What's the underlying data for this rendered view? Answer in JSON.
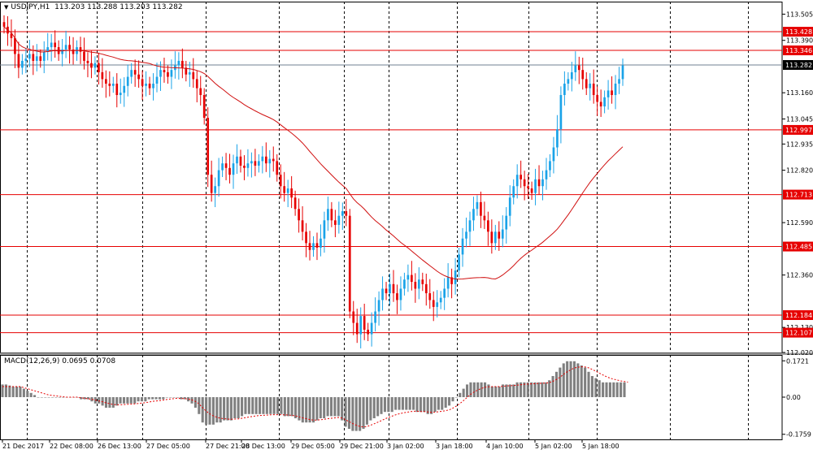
{
  "header": {
    "symbol": "USDJPY,H1",
    "ohlc": "113.203 113.288 113.203 113.282"
  },
  "macd_header": {
    "label": "MACD(12,26,9)",
    "values": "0.0695 0.0708"
  },
  "colors": {
    "bull": "#1aa3e8",
    "bear": "#e60000",
    "level_line": "#e60000",
    "ma_line": "#d01010",
    "grid": "#000000",
    "hist": "#808080",
    "signal": "#e60000",
    "price_tag_bg": "#000000",
    "level_tag_bg": "#e60000"
  },
  "chart_data": [
    {
      "type": "candlestick",
      "title": "USDJPY,H1",
      "ylim": [
        112.02,
        113.56
      ],
      "y_ticks": [
        "113.505",
        "113.390",
        "113.160",
        "113.045",
        "112.935",
        "112.820",
        "112.590",
        "112.360",
        "112.130",
        "112.020"
      ],
      "x_ticks": [
        "21 Dec 2017",
        "22 Dec 08:00",
        "26 Dec 13:00",
        "27 Dec 05:00",
        "27 Dec 21:00",
        "28 Dec 13:00",
        "29 Dec 05:00",
        "29 Dec 21:00",
        "3 Jan 02:00",
        "3 Jan 18:00",
        "4 Jan 10:00",
        "5 Jan 02:00",
        "5 Jan 18:00"
      ],
      "levels": [
        "113.428",
        "113.346",
        "112.997",
        "112.713",
        "112.485",
        "112.184",
        "112.107"
      ],
      "current_price": "113.282",
      "closes": [
        113.45,
        113.42,
        113.4,
        113.33,
        113.27,
        113.3,
        113.31,
        113.33,
        113.3,
        113.32,
        113.3,
        113.34,
        113.36,
        113.38,
        113.36,
        113.33,
        113.35,
        113.37,
        113.35,
        113.33,
        113.36,
        113.34,
        113.3,
        113.29,
        113.27,
        113.29,
        113.25,
        113.22,
        113.2,
        113.19,
        113.2,
        113.15,
        113.16,
        113.19,
        113.23,
        113.26,
        113.24,
        113.22,
        113.19,
        113.2,
        113.18,
        113.2,
        113.23,
        113.26,
        113.25,
        113.23,
        113.26,
        113.28,
        113.3,
        113.27,
        113.24,
        113.25,
        113.22,
        113.18,
        113.15,
        113.05,
        112.8,
        112.72,
        112.75,
        112.82,
        112.85,
        112.83,
        112.8,
        112.85,
        112.88,
        112.84,
        112.83,
        112.85,
        112.86,
        112.84,
        112.86,
        112.88,
        112.85,
        112.87,
        112.86,
        112.8,
        112.75,
        112.72,
        112.74,
        112.7,
        112.65,
        112.6,
        112.55,
        112.5,
        112.47,
        112.5,
        112.48,
        112.52,
        112.6,
        112.65,
        112.6,
        112.58,
        112.62,
        112.64,
        112.62,
        112.2,
        112.15,
        112.1,
        112.18,
        112.12,
        112.1,
        112.15,
        112.2,
        112.25,
        112.3,
        112.28,
        112.32,
        112.28,
        112.25,
        112.3,
        112.34,
        112.36,
        112.33,
        112.3,
        112.34,
        112.32,
        112.28,
        112.25,
        112.22,
        112.24,
        112.26,
        112.3,
        112.35,
        112.32,
        112.38,
        112.45,
        112.52,
        112.55,
        112.6,
        112.65,
        112.68,
        112.62,
        112.6,
        112.55,
        112.5,
        112.55,
        112.52,
        112.56,
        112.62,
        112.7,
        112.75,
        112.8,
        112.78,
        112.75,
        112.74,
        112.72,
        112.78,
        112.75,
        112.78,
        112.82,
        112.86,
        112.92,
        113.0,
        113.15,
        113.2,
        113.22,
        113.25,
        113.28,
        113.26,
        113.22,
        113.18,
        113.2,
        113.15,
        113.12,
        113.1,
        113.14,
        113.17,
        113.15,
        113.2,
        113.22,
        113.28
      ]
    },
    {
      "type": "macd",
      "title": "MACD(12,26,9)",
      "ylim": [
        -0.2,
        0.2
      ],
      "y_ticks": [
        "0.1721",
        "0.00",
        "-0.1759"
      ],
      "histogram": [
        0.06,
        0.06,
        0.055,
        0.05,
        0.05,
        0.05,
        0.04,
        0.03,
        0.02,
        0.01,
        0.0,
        0.0,
        0.0,
        0.0,
        0.0,
        0.0,
        0.0,
        0.0,
        0.0,
        0.0,
        0.0,
        0.0,
        -0.01,
        -0.01,
        -0.01,
        -0.02,
        -0.03,
        -0.03,
        -0.04,
        -0.05,
        -0.05,
        -0.05,
        -0.04,
        -0.03,
        -0.03,
        -0.03,
        -0.03,
        -0.03,
        -0.02,
        -0.02,
        -0.02,
        -0.01,
        -0.01,
        -0.01,
        -0.01,
        -0.01,
        0.0,
        0.0,
        0.0,
        0.0,
        -0.01,
        -0.01,
        -0.02,
        -0.03,
        -0.05,
        -0.08,
        -0.12,
        -0.13,
        -0.13,
        -0.13,
        -0.12,
        -0.12,
        -0.11,
        -0.11,
        -0.11,
        -0.1,
        -0.1,
        -0.09,
        -0.08,
        -0.08,
        -0.08,
        -0.08,
        -0.08,
        -0.08,
        -0.08,
        -0.08,
        -0.08,
        -0.08,
        -0.08,
        -0.09,
        -0.09,
        -0.09,
        -0.1,
        -0.11,
        -0.12,
        -0.12,
        -0.12,
        -0.12,
        -0.11,
        -0.1,
        -0.1,
        -0.09,
        -0.09,
        -0.09,
        -0.09,
        -0.11,
        -0.14,
        -0.15,
        -0.16,
        -0.16,
        -0.16,
        -0.15,
        -0.13,
        -0.11,
        -0.1,
        -0.09,
        -0.08,
        -0.07,
        -0.07,
        -0.07,
        -0.06,
        -0.06,
        -0.06,
        -0.06,
        -0.06,
        -0.06,
        -0.07,
        -0.07,
        -0.07,
        -0.08,
        -0.08,
        -0.07,
        -0.06,
        -0.06,
        -0.05,
        -0.04,
        -0.02,
        0.0,
        0.02,
        0.04,
        0.06,
        0.07,
        0.07,
        0.07,
        0.07,
        0.07,
        0.06,
        0.05,
        0.05,
        0.05,
        0.06,
        0.06,
        0.06,
        0.06,
        0.07,
        0.07,
        0.07,
        0.07,
        0.07,
        0.07,
        0.07,
        0.07,
        0.07,
        0.08,
        0.1,
        0.12,
        0.14,
        0.16,
        0.17,
        0.17,
        0.17,
        0.16,
        0.15,
        0.14,
        0.12,
        0.1,
        0.09,
        0.08,
        0.07,
        0.07,
        0.07,
        0.07,
        0.07,
        0.07,
        0.07
      ],
      "signal": [
        0.05,
        0.05,
        0.05,
        0.05,
        0.05,
        0.05,
        0.045,
        0.04,
        0.035,
        0.03,
        0.025,
        0.02,
        0.015,
        0.01,
        0.008,
        0.006,
        0.004,
        0.002,
        0.0,
        0.0,
        0.0,
        0.0,
        -0.003,
        -0.005,
        -0.008,
        -0.01,
        -0.014,
        -0.018,
        -0.022,
        -0.027,
        -0.031,
        -0.035,
        -0.036,
        -0.036,
        -0.035,
        -0.034,
        -0.033,
        -0.032,
        -0.03,
        -0.028,
        -0.026,
        -0.023,
        -0.02,
        -0.018,
        -0.016,
        -0.014,
        -0.011,
        -0.009,
        -0.007,
        -0.005,
        -0.006,
        -0.007,
        -0.009,
        -0.013,
        -0.02,
        -0.032,
        -0.05,
        -0.066,
        -0.079,
        -0.089,
        -0.095,
        -0.1,
        -0.102,
        -0.104,
        -0.105,
        -0.104,
        -0.103,
        -0.1,
        -0.097,
        -0.094,
        -0.091,
        -0.089,
        -0.087,
        -0.086,
        -0.085,
        -0.084,
        -0.083,
        -0.083,
        -0.083,
        -0.084,
        -0.085,
        -0.086,
        -0.089,
        -0.093,
        -0.098,
        -0.102,
        -0.106,
        -0.109,
        -0.109,
        -0.107,
        -0.105,
        -0.102,
        -0.1,
        -0.098,
        -0.096,
        -0.099,
        -0.107,
        -0.116,
        -0.125,
        -0.133,
        -0.139,
        -0.141,
        -0.139,
        -0.133,
        -0.126,
        -0.119,
        -0.111,
        -0.103,
        -0.096,
        -0.09,
        -0.084,
        -0.079,
        -0.075,
        -0.072,
        -0.069,
        -0.067,
        -0.067,
        -0.068,
        -0.068,
        -0.07,
        -0.072,
        -0.071,
        -0.069,
        -0.067,
        -0.064,
        -0.06,
        -0.052,
        -0.042,
        -0.03,
        -0.016,
        -0.001,
        0.013,
        0.025,
        0.034,
        0.041,
        0.047,
        0.049,
        0.05,
        0.05,
        0.05,
        0.051,
        0.053,
        0.054,
        0.055,
        0.057,
        0.059,
        0.061,
        0.062,
        0.063,
        0.064,
        0.065,
        0.066,
        0.066,
        0.069,
        0.075,
        0.084,
        0.095,
        0.108,
        0.12,
        0.13,
        0.138,
        0.142,
        0.144,
        0.143,
        0.139,
        0.131,
        0.123,
        0.114,
        0.105,
        0.097,
        0.09,
        0.085,
        0.081,
        0.077,
        0.074,
        0.071
      ]
    }
  ]
}
